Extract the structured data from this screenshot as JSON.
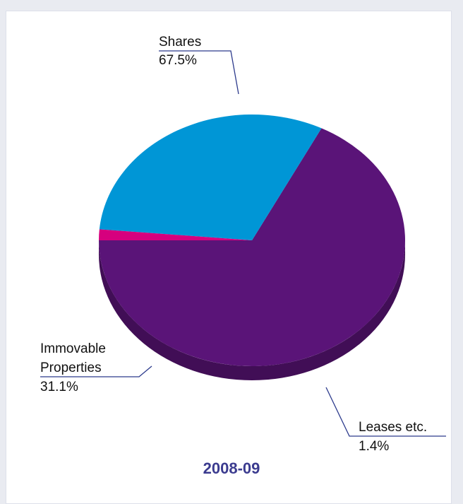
{
  "chart_data": {
    "type": "pie",
    "title": "2008-09",
    "categories": [
      "Shares",
      "Immovable Properties",
      "Leases etc."
    ],
    "values": [
      67.5,
      31.1,
      1.4
    ],
    "value_labels": [
      "67.5%",
      "31.1%",
      "1.4%"
    ],
    "colors": [
      "#5a1478",
      "#0096d6",
      "#d6007e"
    ]
  }
}
